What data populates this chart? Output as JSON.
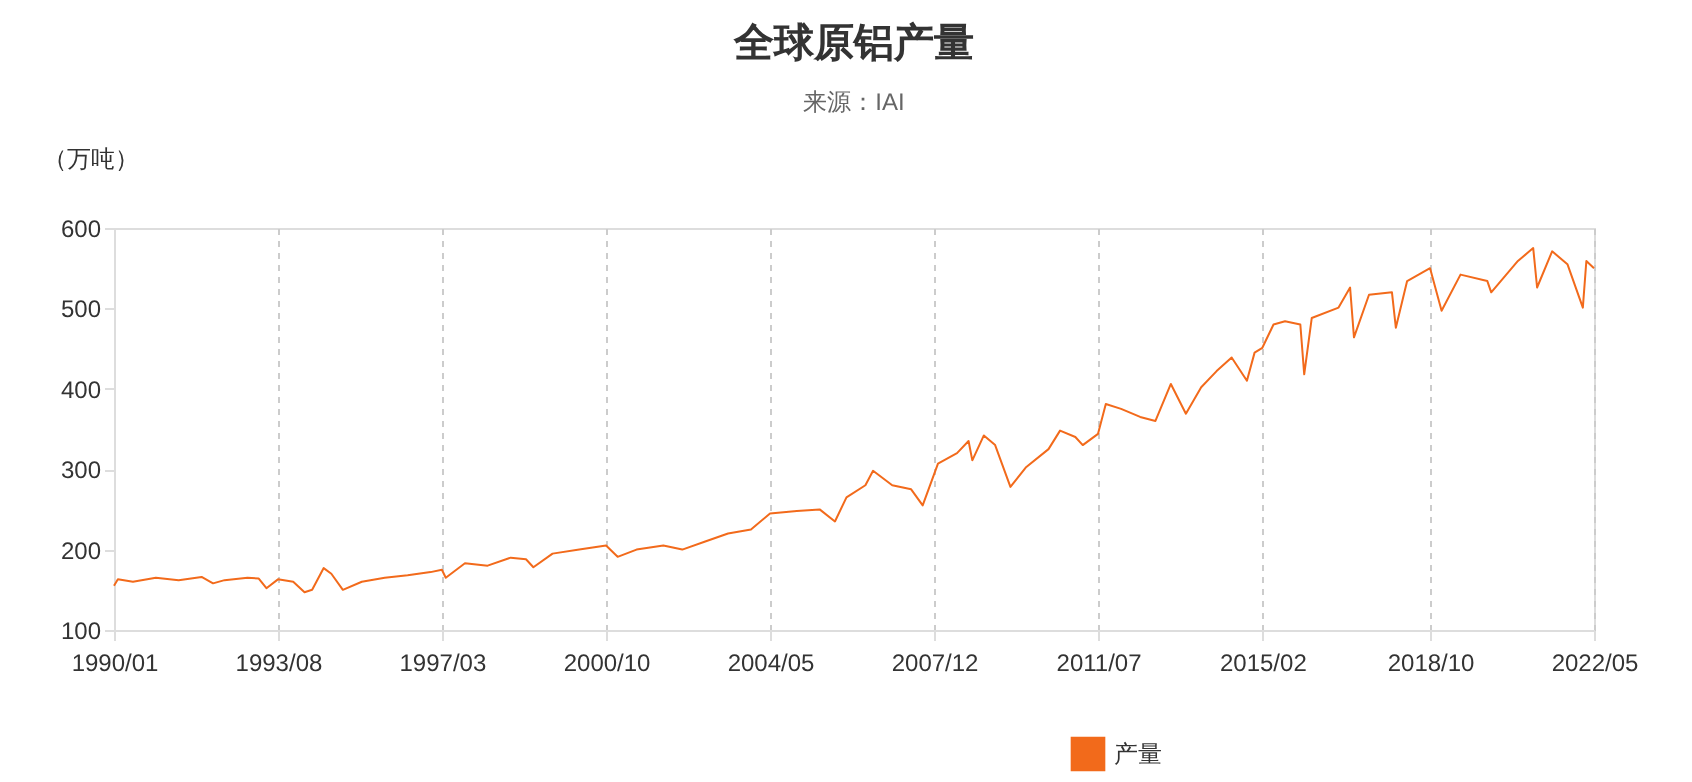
{
  "chart_data": {
    "type": "line",
    "title": "全球原铝产量",
    "subtitle": "来源：IAI",
    "ylabel": "（万吨）",
    "x": [
      "1990-01",
      "1990-02",
      "1990-06",
      "1990-12",
      "1991-06",
      "1991-12",
      "1992-03",
      "1992-06",
      "1992-12",
      "1993-03",
      "1993-05",
      "1993-08",
      "1993-12",
      "1994-03",
      "1994-05",
      "1994-08",
      "1994-10",
      "1995-01",
      "1995-06",
      "1995-12",
      "1996-06",
      "1996-12",
      "1997-03",
      "1997-04",
      "1997-09",
      "1998-03",
      "1998-09",
      "1999-01",
      "1999-03",
      "1999-08",
      "2000-03",
      "2000-10",
      "2001-01",
      "2001-06",
      "2002-01",
      "2002-06",
      "2002-12",
      "2003-06",
      "2003-12",
      "2004-05",
      "2004-12",
      "2005-06",
      "2005-10",
      "2006-01",
      "2006-06",
      "2006-08",
      "2007-01",
      "2007-06",
      "2007-09",
      "2008-01",
      "2008-06",
      "2008-09",
      "2008-10",
      "2009-01",
      "2009-04",
      "2009-08",
      "2009-12",
      "2010-06",
      "2010-09",
      "2011-01",
      "2011-03",
      "2011-07",
      "2011-09",
      "2012-01",
      "2012-06",
      "2012-10",
      "2013-02",
      "2013-06",
      "2013-10",
      "2014-02",
      "2014-06",
      "2014-10",
      "2014-12",
      "2015-02",
      "2015-05",
      "2015-08",
      "2015-12",
      "2016-01",
      "2016-03",
      "2016-10",
      "2017-01",
      "2017-02",
      "2017-06",
      "2017-12",
      "2018-01",
      "2018-04",
      "2018-10",
      "2019-01",
      "2019-06",
      "2020-01",
      "2020-02",
      "2020-09",
      "2021-01",
      "2021-02",
      "2021-06",
      "2021-10",
      "2022-02",
      "2022-03",
      "2022-05"
    ],
    "series": [
      {
        "name": "产量",
        "color": "#f26a1b",
        "values": [
          155,
          163,
          160,
          165,
          162,
          166,
          158,
          162,
          165,
          164,
          152,
          163,
          160,
          147,
          150,
          177,
          170,
          150,
          160,
          165,
          168,
          172,
          175,
          165,
          183,
          180,
          190,
          188,
          178,
          195,
          200,
          205,
          191,
          200,
          205,
          200,
          210,
          220,
          225,
          245,
          248,
          250,
          235,
          265,
          280,
          298,
          280,
          275,
          255,
          307,
          320,
          335,
          311,
          342,
          330,
          278,
          302,
          325,
          348,
          340,
          330,
          344,
          381,
          375,
          365,
          360,
          406,
          369,
          402,
          422,
          439,
          410,
          445,
          451,
          480,
          484,
          480,
          418,
          488,
          501,
          526,
          464,
          517,
          520,
          476,
          534,
          550,
          497,
          542,
          534,
          520,
          559,
          575,
          526,
          571,
          555,
          501,
          559,
          550
        ]
      }
    ],
    "xlim": [
      "1990-01",
      "2022-05"
    ],
    "xticks": [
      {
        "value": "1990-01",
        "label": "1990/01"
      },
      {
        "value": "1993-08",
        "label": "1993/08"
      },
      {
        "value": "1997-03",
        "label": "1997/03"
      },
      {
        "value": "2000-10",
        "label": "2000/10"
      },
      {
        "value": "2004-05",
        "label": "2004/05"
      },
      {
        "value": "2007-12",
        "label": "2007/12"
      },
      {
        "value": "2011-07",
        "label": "2011/07"
      },
      {
        "value": "2015-02",
        "label": "2015/02"
      },
      {
        "value": "2018-10",
        "label": "2018/10"
      },
      {
        "value": "2022-05",
        "label": "2022/05"
      }
    ],
    "ylim": [
      100,
      600
    ],
    "yticks": [
      100,
      200,
      300,
      400,
      500,
      600
    ],
    "grid": "x",
    "legend": "bottom"
  }
}
